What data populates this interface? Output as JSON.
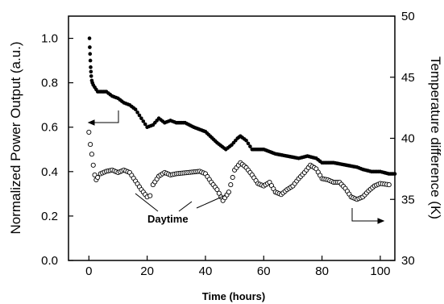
{
  "chart_data": {
    "type": "scatter",
    "title": "",
    "xlabel": "Time (hours)",
    "ylabel": "Normalized Power Output (a.u.)",
    "y2label": "Temperature difference (K)",
    "xlim": [
      -7,
      105
    ],
    "ylim": [
      0,
      1.1
    ],
    "y2lim": [
      30,
      50
    ],
    "xticks": [
      0,
      20,
      40,
      60,
      80,
      100
    ],
    "yticks": [
      0.0,
      0.2,
      0.4,
      0.6,
      0.8,
      1.0
    ],
    "y2ticks": [
      30,
      35,
      40,
      45,
      50
    ],
    "xtick_labels": [
      "0",
      "20",
      "40",
      "60",
      "80",
      "100"
    ],
    "ytick_labels": [
      "0.0",
      "0.2",
      "0.4",
      "0.6",
      "0.8",
      "1.0"
    ],
    "y2tick_labels": [
      "30",
      "35",
      "40",
      "45",
      "50"
    ],
    "grid": false,
    "annotations": [
      {
        "text": "Daytime"
      }
    ],
    "series": [
      {
        "axis": "left",
        "marker": "filled-circle",
        "color": "#000000",
        "x": [
          0.2,
          0.3,
          0.4,
          0.5,
          0.6,
          0.7,
          0.8,
          1,
          1.2,
          1.5,
          2,
          2.5,
          3,
          4,
          5,
          6,
          8,
          10,
          12,
          14,
          16,
          18,
          20,
          22,
          24,
          26,
          28,
          30,
          33,
          36,
          40,
          44,
          47,
          49,
          51,
          52,
          54,
          56,
          60,
          64,
          68,
          72,
          75,
          78,
          80,
          84,
          88,
          92,
          94,
          97,
          100,
          103,
          105
        ],
        "y": [
          1.0,
          0.96,
          0.93,
          0.9,
          0.87,
          0.85,
          0.83,
          0.81,
          0.8,
          0.79,
          0.78,
          0.77,
          0.76,
          0.76,
          0.76,
          0.76,
          0.74,
          0.73,
          0.71,
          0.7,
          0.68,
          0.64,
          0.6,
          0.61,
          0.64,
          0.62,
          0.63,
          0.62,
          0.62,
          0.6,
          0.58,
          0.53,
          0.5,
          0.52,
          0.55,
          0.56,
          0.54,
          0.5,
          0.5,
          0.48,
          0.47,
          0.46,
          0.47,
          0.46,
          0.44,
          0.44,
          0.43,
          0.42,
          0.41,
          0.4,
          0.4,
          0.39,
          0.39
        ]
      },
      {
        "axis": "right",
        "marker": "open-circle",
        "color": "#000000",
        "x": [
          0,
          0.5,
          1,
          1.5,
          2,
          2.5,
          3,
          4,
          6,
          8,
          10,
          12,
          14,
          16,
          18,
          20,
          21,
          22,
          24,
          26,
          28,
          30,
          34,
          38,
          40,
          42,
          44,
          46,
          48,
          50,
          52,
          54,
          56,
          58,
          60,
          62,
          64,
          66,
          68,
          70,
          72,
          74,
          76,
          78,
          80,
          82,
          84,
          86,
          88,
          90,
          92,
          94,
          96,
          98,
          100,
          103
        ],
        "y": [
          40.5,
          39.5,
          38.7,
          37.8,
          37.0,
          36.6,
          36.8,
          37.1,
          37.3,
          37.4,
          37.2,
          37.4,
          37.2,
          36.5,
          35.8,
          35.2,
          35.3,
          36.2,
          36.9,
          37.2,
          37.0,
          37.1,
          37.2,
          37.3,
          37.1,
          36.4,
          35.8,
          34.9,
          35.6,
          37.4,
          38.0,
          37.6,
          37.0,
          36.3,
          36.1,
          36.4,
          35.6,
          35.4,
          35.8,
          36.1,
          36.7,
          37.2,
          37.8,
          37.5,
          36.7,
          36.6,
          36.4,
          36.4,
          35.9,
          35.2,
          35.0,
          35.2,
          35.7,
          36.1,
          36.3,
          36.2
        ]
      }
    ]
  }
}
